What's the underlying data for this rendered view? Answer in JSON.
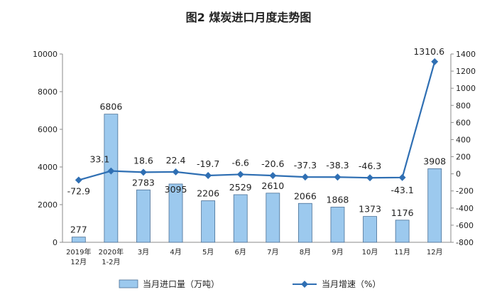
{
  "chart_data": {
    "type": "bar+line",
    "title": "图2  煤炭进口月度走势图",
    "categories": [
      "2019年\n12月",
      "2020年\n1-2月",
      "3月",
      "4月",
      "5月",
      "6月",
      "7月",
      "8月",
      "9月",
      "10月",
      "11月",
      "12月"
    ],
    "series": [
      {
        "name": "当月进口量（万吨）",
        "type": "bar",
        "axis": "left",
        "color": "#9cc9ee",
        "values": [
          277,
          6806,
          2783,
          3095,
          2206,
          2529,
          2610,
          2066,
          1868,
          1373,
          1176,
          3908
        ],
        "labels": [
          "277",
          "6806",
          "2783",
          "3095",
          "2206",
          "2529",
          "2610",
          "2066",
          "1868",
          "1373",
          "1176",
          "3908"
        ]
      },
      {
        "name": "当月增速（%）",
        "type": "line",
        "axis": "right",
        "color": "#2f6fb3",
        "values": [
          -72.9,
          33.1,
          18.6,
          22.4,
          -19.7,
          -6.6,
          -20.6,
          -37.3,
          -38.3,
          -46.3,
          -43.1,
          1310.6
        ],
        "labels": [
          "-72.9",
          "33.1",
          "18.6",
          "22.4",
          "-19.7",
          "-6.6",
          "-20.6",
          "-37.3",
          "-38.3",
          "-46.3",
          "-43.1",
          "1310.6"
        ]
      }
    ],
    "y_left": {
      "min": 0,
      "max": 10000,
      "ticks": [
        "0",
        "2000",
        "4000",
        "6000",
        "8000",
        "10000"
      ]
    },
    "y_right": {
      "min": -800,
      "max": 1400,
      "ticks": [
        "-800",
        "-600",
        "-400",
        "-200",
        "0",
        "200",
        "400",
        "600",
        "800",
        "1000",
        "1200",
        "1400"
      ]
    },
    "legend_position": "bottom",
    "grid": false
  }
}
